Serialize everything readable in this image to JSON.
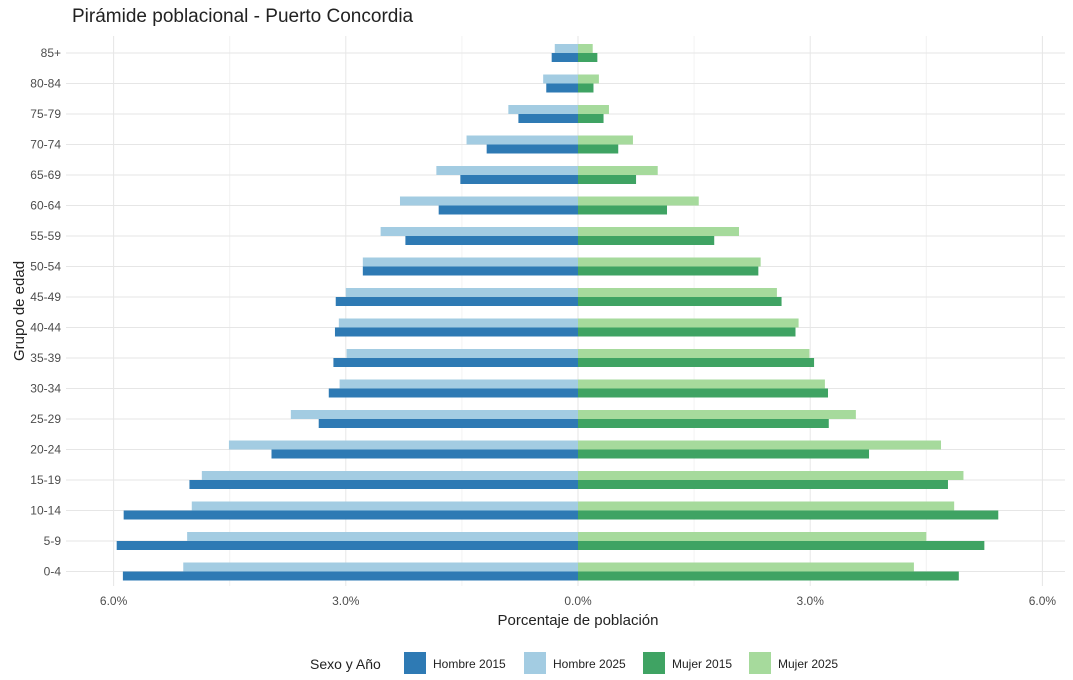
{
  "chart_data": {
    "type": "bar",
    "orientation": "horizontal",
    "title": "Pirámide poblacional - Puerto Concordia",
    "xlabel": "Porcentaje de población",
    "ylabel": "Grupo de edad",
    "categories": [
      "0-4",
      "5-9",
      "10-14",
      "15-19",
      "20-24",
      "25-29",
      "30-34",
      "35-39",
      "40-44",
      "45-49",
      "50-54",
      "55-59",
      "60-64",
      "65-69",
      "70-74",
      "75-79",
      "80-84",
      "85+"
    ],
    "xlim": [
      -6.0,
      6.0
    ],
    "xticks": [
      -6,
      -3,
      0,
      3,
      6
    ],
    "xtick_labels": [
      "6.0%",
      "3.0%",
      "0.0%",
      "3.0%",
      "6.0%"
    ],
    "grid": true,
    "legend": {
      "title": "Sexo y Año",
      "position": "bottom"
    },
    "series": [
      {
        "name": "Hombre 2015",
        "side": "left",
        "color": "#2e7ab4",
        "values": [
          -5.88,
          -5.96,
          -5.87,
          -5.02,
          -3.96,
          -3.35,
          -3.22,
          -3.16,
          -3.14,
          -3.13,
          -2.78,
          -2.23,
          -1.8,
          -1.52,
          -1.18,
          -0.77,
          -0.41,
          -0.34
        ]
      },
      {
        "name": "Hombre 2025",
        "side": "left",
        "color": "#a3cce2",
        "values": [
          -5.1,
          -5.05,
          -4.99,
          -4.86,
          -4.51,
          -3.71,
          -3.08,
          -2.99,
          -3.09,
          -3.0,
          -2.78,
          -2.55,
          -2.3,
          -1.83,
          -1.44,
          -0.9,
          -0.45,
          -0.3
        ]
      },
      {
        "name": "Mujer 2015",
        "side": "right",
        "color": "#3fa363",
        "values": [
          4.92,
          5.25,
          5.43,
          4.78,
          3.76,
          3.24,
          3.23,
          3.05,
          2.81,
          2.63,
          2.33,
          1.76,
          1.15,
          0.75,
          0.52,
          0.33,
          0.2,
          0.25
        ]
      },
      {
        "name": "Mujer 2025",
        "side": "right",
        "color": "#a6da9c",
        "values": [
          4.34,
          4.5,
          4.86,
          4.98,
          4.69,
          3.59,
          3.19,
          2.99,
          2.85,
          2.57,
          2.36,
          2.08,
          1.56,
          1.03,
          0.71,
          0.4,
          0.27,
          0.19
        ]
      }
    ]
  }
}
